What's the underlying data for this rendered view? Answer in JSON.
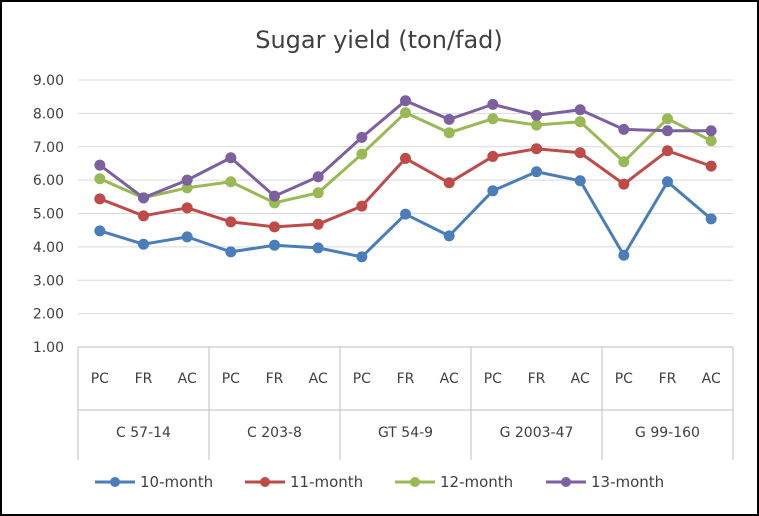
{
  "chart_data": {
    "type": "line",
    "title": "Sugar yield (ton/fad)",
    "ylim": [
      1.0,
      9.0
    ],
    "ytick_step": 1.0,
    "ytick_labels": [
      "1.00",
      "2.00",
      "3.00",
      "4.00",
      "5.00",
      "6.00",
      "7.00",
      "8.00",
      "9.00"
    ],
    "grid": true,
    "legend_position": "bottom",
    "groups": [
      "C 57-14",
      "C 203-8",
      "GT 54-9",
      "G 2003-47",
      "G 99-160"
    ],
    "subcategories": [
      "PC",
      "FR",
      "AC"
    ],
    "categories": [
      "C 57-14 PC",
      "C 57-14 FR",
      "C 57-14 AC",
      "C 203-8 PC",
      "C 203-8 FR",
      "C 203-8 AC",
      "GT 54-9 PC",
      "GT 54-9 FR",
      "GT 54-9 AC",
      "G 2003-47 PC",
      "G 2003-47 FR",
      "G 2003-47 AC",
      "G 99-160 PC",
      "G 99-160 FR",
      "G 99-160 AC"
    ],
    "series": [
      {
        "name": "10-month",
        "color": "#4a7ebb",
        "values": [
          4.48,
          4.08,
          4.3,
          3.85,
          4.05,
          3.97,
          3.7,
          4.98,
          4.33,
          5.68,
          6.25,
          5.98,
          3.75,
          5.95,
          4.84
        ]
      },
      {
        "name": "11-month",
        "color": "#be4b48",
        "values": [
          5.44,
          4.93,
          5.17,
          4.75,
          4.6,
          4.68,
          5.22,
          6.65,
          5.92,
          6.71,
          6.94,
          6.82,
          5.88,
          6.88,
          6.42
        ]
      },
      {
        "name": "12-month",
        "color": "#98b954",
        "values": [
          6.04,
          5.47,
          5.77,
          5.95,
          5.32,
          5.62,
          6.78,
          8.02,
          7.42,
          7.84,
          7.65,
          7.75,
          6.55,
          7.84,
          7.18
        ]
      },
      {
        "name": "13-month",
        "color": "#7d60a0",
        "values": [
          6.45,
          5.47,
          6.0,
          6.67,
          5.52,
          6.1,
          7.28,
          8.38,
          7.82,
          8.27,
          7.94,
          8.11,
          7.52,
          7.48,
          7.48
        ]
      }
    ]
  }
}
